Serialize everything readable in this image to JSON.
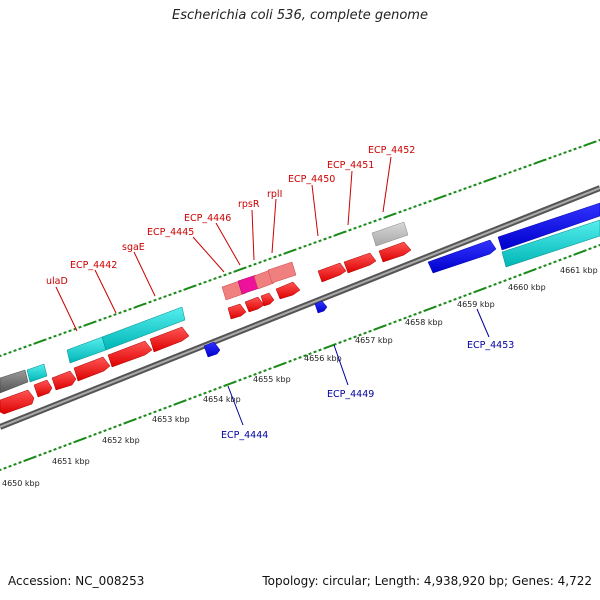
{
  "header": {
    "title": "Escherichia coli 536, complete genome"
  },
  "footer": {
    "accession": "Accession: NC_008253",
    "topology": "Topology: circular; Length: 4,938,920 bp; Genes: 4,722"
  },
  "colors": {
    "forward": "#ff0000",
    "forward_light": "#f08080",
    "forward_pink": "#ee1199",
    "reverse": "#0000ee",
    "rna": "#00cccc",
    "pseudo": "#777777",
    "other": "#c0c0c0",
    "backbone": "#888888",
    "tick": "#1a8a1a",
    "label_top": "#cc0000",
    "label_bottom": "#00009c"
  },
  "ruler": {
    "unit": "kbp",
    "labels": [
      "4650 kbp",
      "4651 kbp",
      "4652 kbp",
      "4653 kbp",
      "4654 kbp",
      "4655 kbp",
      "4656 kbp",
      "4657 kbp",
      "4658 kbp",
      "4659 kbp",
      "4660 kbp",
      "4661 kbp"
    ]
  },
  "gene_labels_top": [
    "ulaD",
    "ECP_4442",
    "sgaE",
    "ECP_4445",
    "ECP_4446",
    "rpsR",
    "rplI",
    "ECP_4450",
    "ECP_4451",
    "ECP_4452"
  ],
  "gene_labels_bottom": [
    "ECP_4444",
    "ECP_4449",
    "ECP_4453"
  ]
}
